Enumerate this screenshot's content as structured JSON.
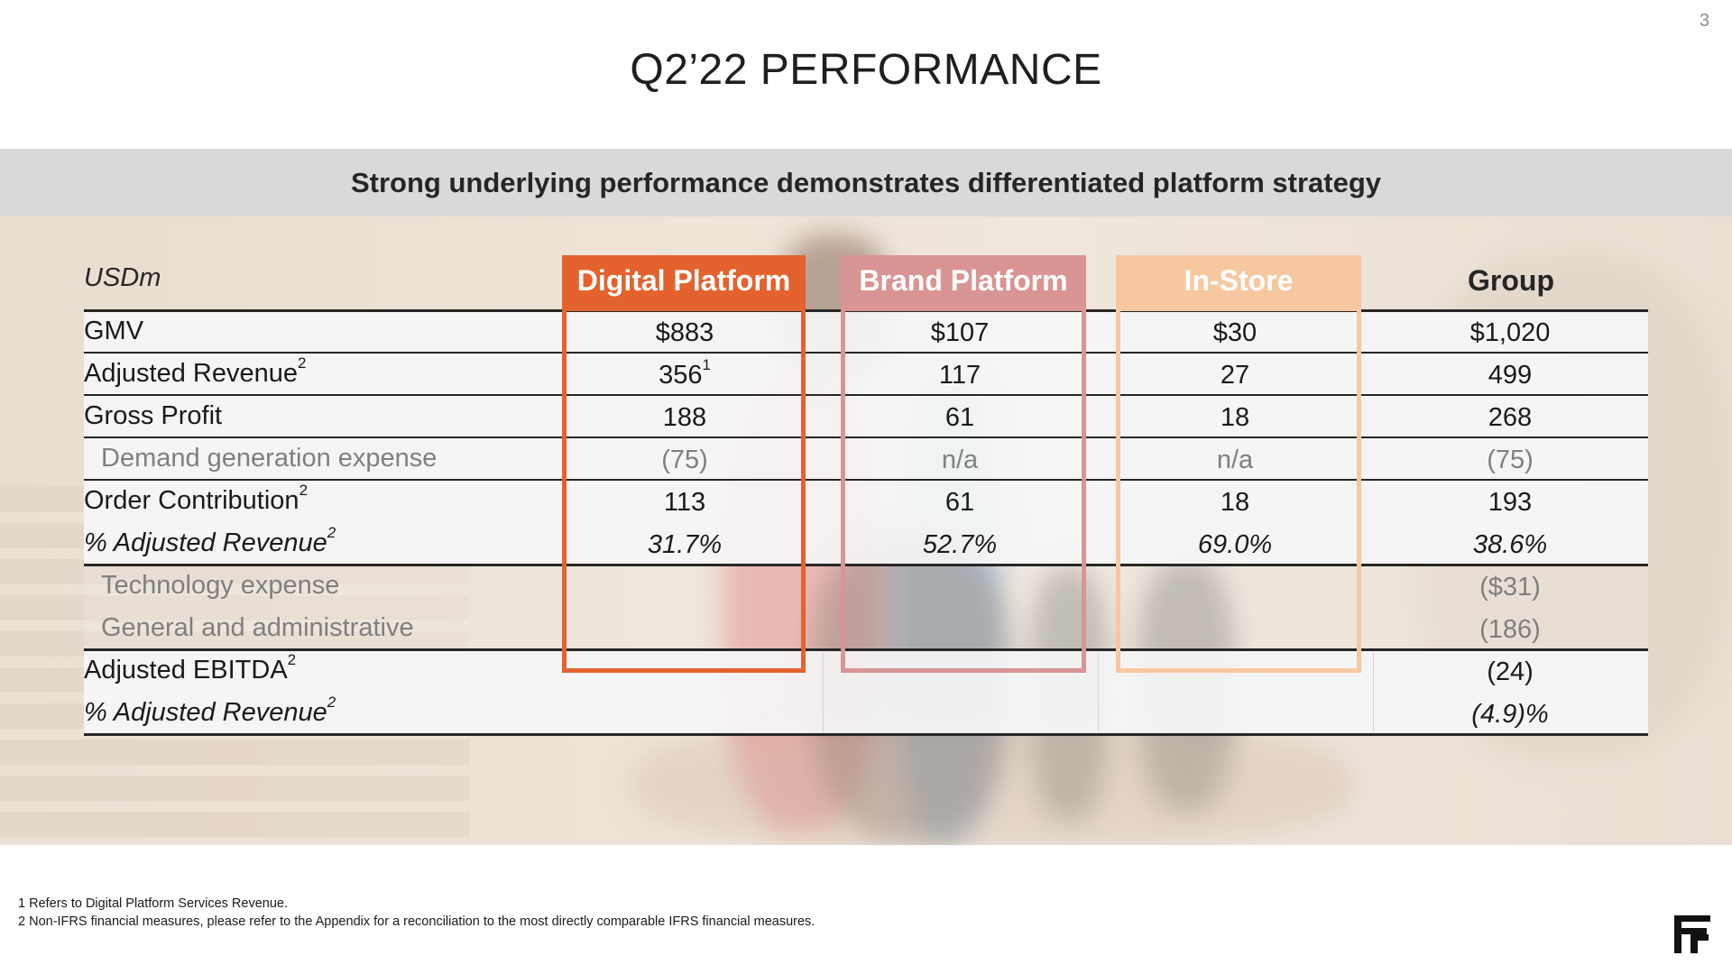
{
  "page_number": "3",
  "title": "Q2’22 PERFORMANCE",
  "banner": "Strong underlying performance demonstrates differentiated platform strategy",
  "table": {
    "units_label": "USDm",
    "columns": {
      "digital": "Digital Platform",
      "brand": "Brand Platform",
      "instore": "In-Store",
      "group": "Group"
    },
    "rows": [
      {
        "label": "GMV",
        "sup": "",
        "digital": "$883",
        "digital_sup": "",
        "brand": "$107",
        "instore": "$30",
        "group": "$1,020"
      },
      {
        "label": "Adjusted Revenue",
        "sup": "2",
        "digital": "356",
        "digital_sup": "1",
        "brand": "117",
        "instore": "27",
        "group": "499"
      },
      {
        "label": "Gross Profit",
        "sup": "",
        "digital": "188",
        "digital_sup": "",
        "brand": "61",
        "instore": "18",
        "group": "268"
      },
      {
        "label": "Demand generation expense",
        "sup": "",
        "digital": "(75)",
        "digital_sup": "",
        "brand": "n/a",
        "instore": "n/a",
        "group": "(75)"
      },
      {
        "label": "Order Contribution",
        "sup": "2",
        "digital": "113",
        "digital_sup": "",
        "brand": "61",
        "instore": "18",
        "group": "193"
      },
      {
        "label": "% Adjusted Revenue",
        "sup": "2",
        "digital": "31.7%",
        "digital_sup": "",
        "brand": "52.7%",
        "instore": "69.0%",
        "group": "38.6%"
      },
      {
        "label": "Technology expense",
        "sup": "",
        "digital": "",
        "digital_sup": "",
        "brand": "",
        "instore": "",
        "group": "($31)"
      },
      {
        "label": "General and administrative",
        "sup": "",
        "digital": "",
        "digital_sup": "",
        "brand": "",
        "instore": "",
        "group": "(186)"
      },
      {
        "label": "Adjusted EBITDA",
        "sup": "2",
        "digital": "",
        "digital_sup": "",
        "brand": "",
        "instore": "",
        "group": "(24)"
      },
      {
        "label": "% Adjusted Revenue",
        "sup": "2",
        "digital": "",
        "digital_sup": "",
        "brand": "",
        "instore": "",
        "group": "(4.9)%"
      }
    ]
  },
  "footnotes": [
    "1 Refers to Digital Platform Services Revenue.",
    "2 Non-IFRS financial measures, please refer to the Appendix for a reconciliation to the most directly comparable IFRS financial measures."
  ],
  "logo_icon": "ff-logo-icon",
  "colors": {
    "digital": "#e4622d",
    "brand": "#d99494",
    "instore": "#f7c8a0",
    "banner": "#d9d9d9"
  }
}
